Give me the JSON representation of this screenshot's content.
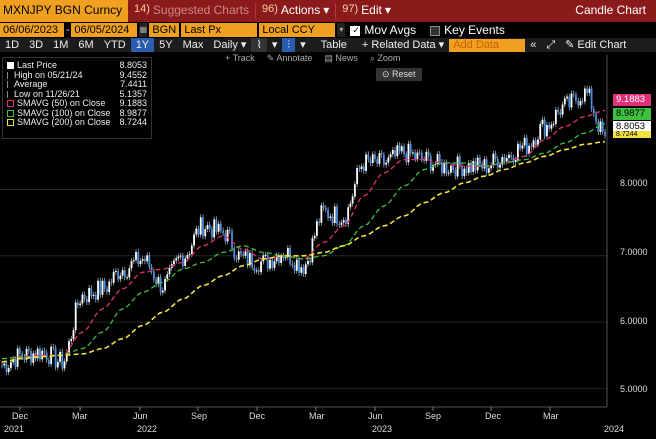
{
  "topbar": {
    "ticker": "MXNJPY BGN Curncy",
    "suggested_num": "14)",
    "suggested_label": "Suggested Charts",
    "actions_num": "96)",
    "actions_label": "Actions",
    "edit_num": "97)",
    "edit_label": "Edit",
    "title": "Candle Chart"
  },
  "controls": {
    "start_date": "06/06/2023",
    "end_date": "06/05/2024",
    "source": "BGN",
    "field": "Last Px",
    "currency": "Local CCY",
    "mov_avgs_label": "Mov Avgs",
    "mov_avgs_checked": true,
    "key_events_label": "Key Events",
    "key_events_checked": false
  },
  "toolbar": {
    "periods": [
      "1D",
      "3D",
      "1M",
      "6M",
      "YTD",
      "1Y",
      "5Y",
      "Max"
    ],
    "selected_period": "1Y",
    "frequency": "Daily",
    "table_label": "Table",
    "related_data_label": "+ Related Data",
    "add_data_placeholder": "Add Data",
    "edit_chart_label": "Edit Chart"
  },
  "chart_tools": {
    "track": "Track",
    "annotate": "Annotate",
    "news": "News",
    "zoom": "Zoom",
    "reset": "Reset"
  },
  "legend": [
    {
      "label": "Last Price",
      "value": "8.8053",
      "swatch": "#ffffff"
    },
    {
      "label": "High on 05/21/24",
      "value": "9.4552",
      "swatch": "none"
    },
    {
      "label": "Average",
      "value": "7.4411",
      "swatch": "none"
    },
    {
      "label": "Low on 11/26/21",
      "value": "5.1357",
      "swatch": "none"
    },
    {
      "label": "SMAVG (50)  on Close",
      "value": "9.1883",
      "swatch": "#e0307a"
    },
    {
      "label": "SMAVG (100)  on Close",
      "value": "8.9877",
      "swatch": "#3fbf3f"
    },
    {
      "label": "SMAVG (200)  on Close",
      "value": "8.7244",
      "swatch": "#f0e040"
    }
  ],
  "tags": {
    "smavg50": "9.1883",
    "smavg100": "8.9877",
    "last": "8.8053",
    "smavg200": "8.7244"
  },
  "colors": {
    "price": "#4a8fe0",
    "smavg50": "#e0307a",
    "smavg100": "#3fbf3f",
    "smavg200": "#f0e040",
    "accent": "#f0a020",
    "topbar": "#8b1a1a"
  },
  "chart_data": {
    "type": "line",
    "y_ticks": [
      "8.0000",
      "7.0000",
      "6.0000",
      "5.0000"
    ],
    "x_months": [
      "Dec",
      "Mar",
      "Jun",
      "Sep",
      "Dec",
      "Mar",
      "Jun",
      "Sep",
      "Dec",
      "Mar"
    ],
    "x_years": [
      "2021",
      "2022",
      "2023",
      "2024"
    ],
    "ylim": [
      4.75,
      9.65
    ],
    "x": [
      "2021-12-01",
      "2022-01-01",
      "2022-02-01",
      "2022-03-01",
      "2022-04-01",
      "2022-05-01",
      "2022-06-01",
      "2022-07-01",
      "2022-08-01",
      "2022-09-01",
      "2022-10-01",
      "2022-11-01",
      "2022-12-01",
      "2023-01-01",
      "2023-02-01",
      "2023-03-01",
      "2023-04-01",
      "2023-05-01",
      "2023-06-01",
      "2023-07-01",
      "2023-08-01",
      "2023-09-01",
      "2023-10-01",
      "2023-11-01",
      "2023-12-01",
      "2024-01-01",
      "2024-02-01",
      "2024-03-01",
      "2024-04-01",
      "2024-05-01",
      "2024-06-01"
    ],
    "series": [
      {
        "name": "Last Price",
        "values": [
          5.35,
          5.5,
          5.55,
          5.4,
          6.4,
          6.5,
          6.8,
          6.95,
          6.55,
          7.0,
          7.45,
          7.35,
          6.95,
          6.9,
          7.05,
          6.85,
          7.65,
          7.6,
          8.4,
          8.4,
          8.55,
          8.45,
          8.35,
          8.35,
          8.35,
          8.5,
          8.65,
          8.95,
          9.25,
          9.45,
          8.81
        ]
      },
      {
        "name": "SMAVG (50)",
        "values": [
          5.45,
          5.48,
          5.5,
          5.5,
          5.85,
          6.2,
          6.5,
          6.75,
          6.8,
          6.9,
          7.15,
          7.3,
          7.1,
          6.95,
          7.0,
          6.95,
          7.2,
          7.45,
          7.9,
          8.25,
          8.45,
          8.45,
          8.4,
          8.35,
          8.35,
          8.4,
          8.5,
          8.75,
          8.95,
          9.1,
          9.19
        ]
      },
      {
        "name": "SMAVG (100)",
        "values": [
          5.45,
          5.47,
          5.48,
          5.5,
          5.6,
          5.85,
          6.2,
          6.45,
          6.6,
          6.8,
          6.9,
          7.05,
          7.15,
          7.05,
          7.0,
          6.95,
          7.0,
          7.15,
          7.45,
          7.75,
          8.05,
          8.3,
          8.4,
          8.4,
          8.35,
          8.4,
          8.45,
          8.55,
          8.7,
          8.85,
          8.99
        ]
      },
      {
        "name": "SMAVG (200)",
        "values": [
          5.4,
          5.45,
          5.48,
          5.5,
          5.52,
          5.6,
          5.75,
          5.95,
          6.15,
          6.35,
          6.55,
          6.7,
          6.85,
          6.95,
          7.0,
          7.0,
          7.05,
          7.15,
          7.3,
          7.45,
          7.6,
          7.8,
          7.95,
          8.1,
          8.2,
          8.3,
          8.4,
          8.5,
          8.6,
          8.68,
          8.72
        ]
      }
    ]
  }
}
